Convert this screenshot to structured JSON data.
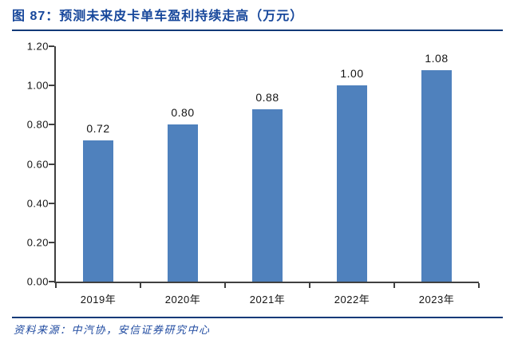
{
  "header": {
    "figure_label": "图 87",
    "title": "图 87：预测未来皮卡单车盈利持续走高（万元）"
  },
  "chart_data": {
    "type": "bar",
    "title": "预测未来皮卡单车盈利持续走高（万元）",
    "categories": [
      "2019年",
      "2020年",
      "2021年",
      "2022年",
      "2023年"
    ],
    "values": [
      0.72,
      0.8,
      0.88,
      1.0,
      1.08
    ],
    "data_labels": [
      "0.72",
      "0.80",
      "0.88",
      "1.00",
      "1.08"
    ],
    "xlabel": "",
    "ylabel": "",
    "ylim": [
      0,
      1.2
    ],
    "yticks": [
      0.0,
      0.2,
      0.4,
      0.6,
      0.8,
      1.0,
      1.2
    ],
    "ytick_labels": [
      "0.00",
      "0.20",
      "0.40",
      "0.60",
      "0.80",
      "1.00",
      "1.20"
    ],
    "grid": false,
    "legend_position": "none",
    "bar_color": "#4F81BD"
  },
  "footer": {
    "text": "资料来源：中汽协，安信证券研究中心"
  },
  "colors": {
    "title_blue": "#17479B",
    "divider_blue": "#123A78",
    "footer_blue": "#1F4AA0",
    "bar_blue": "#4F81BD",
    "axis_gray": "#404040",
    "label_black": "#141414"
  }
}
